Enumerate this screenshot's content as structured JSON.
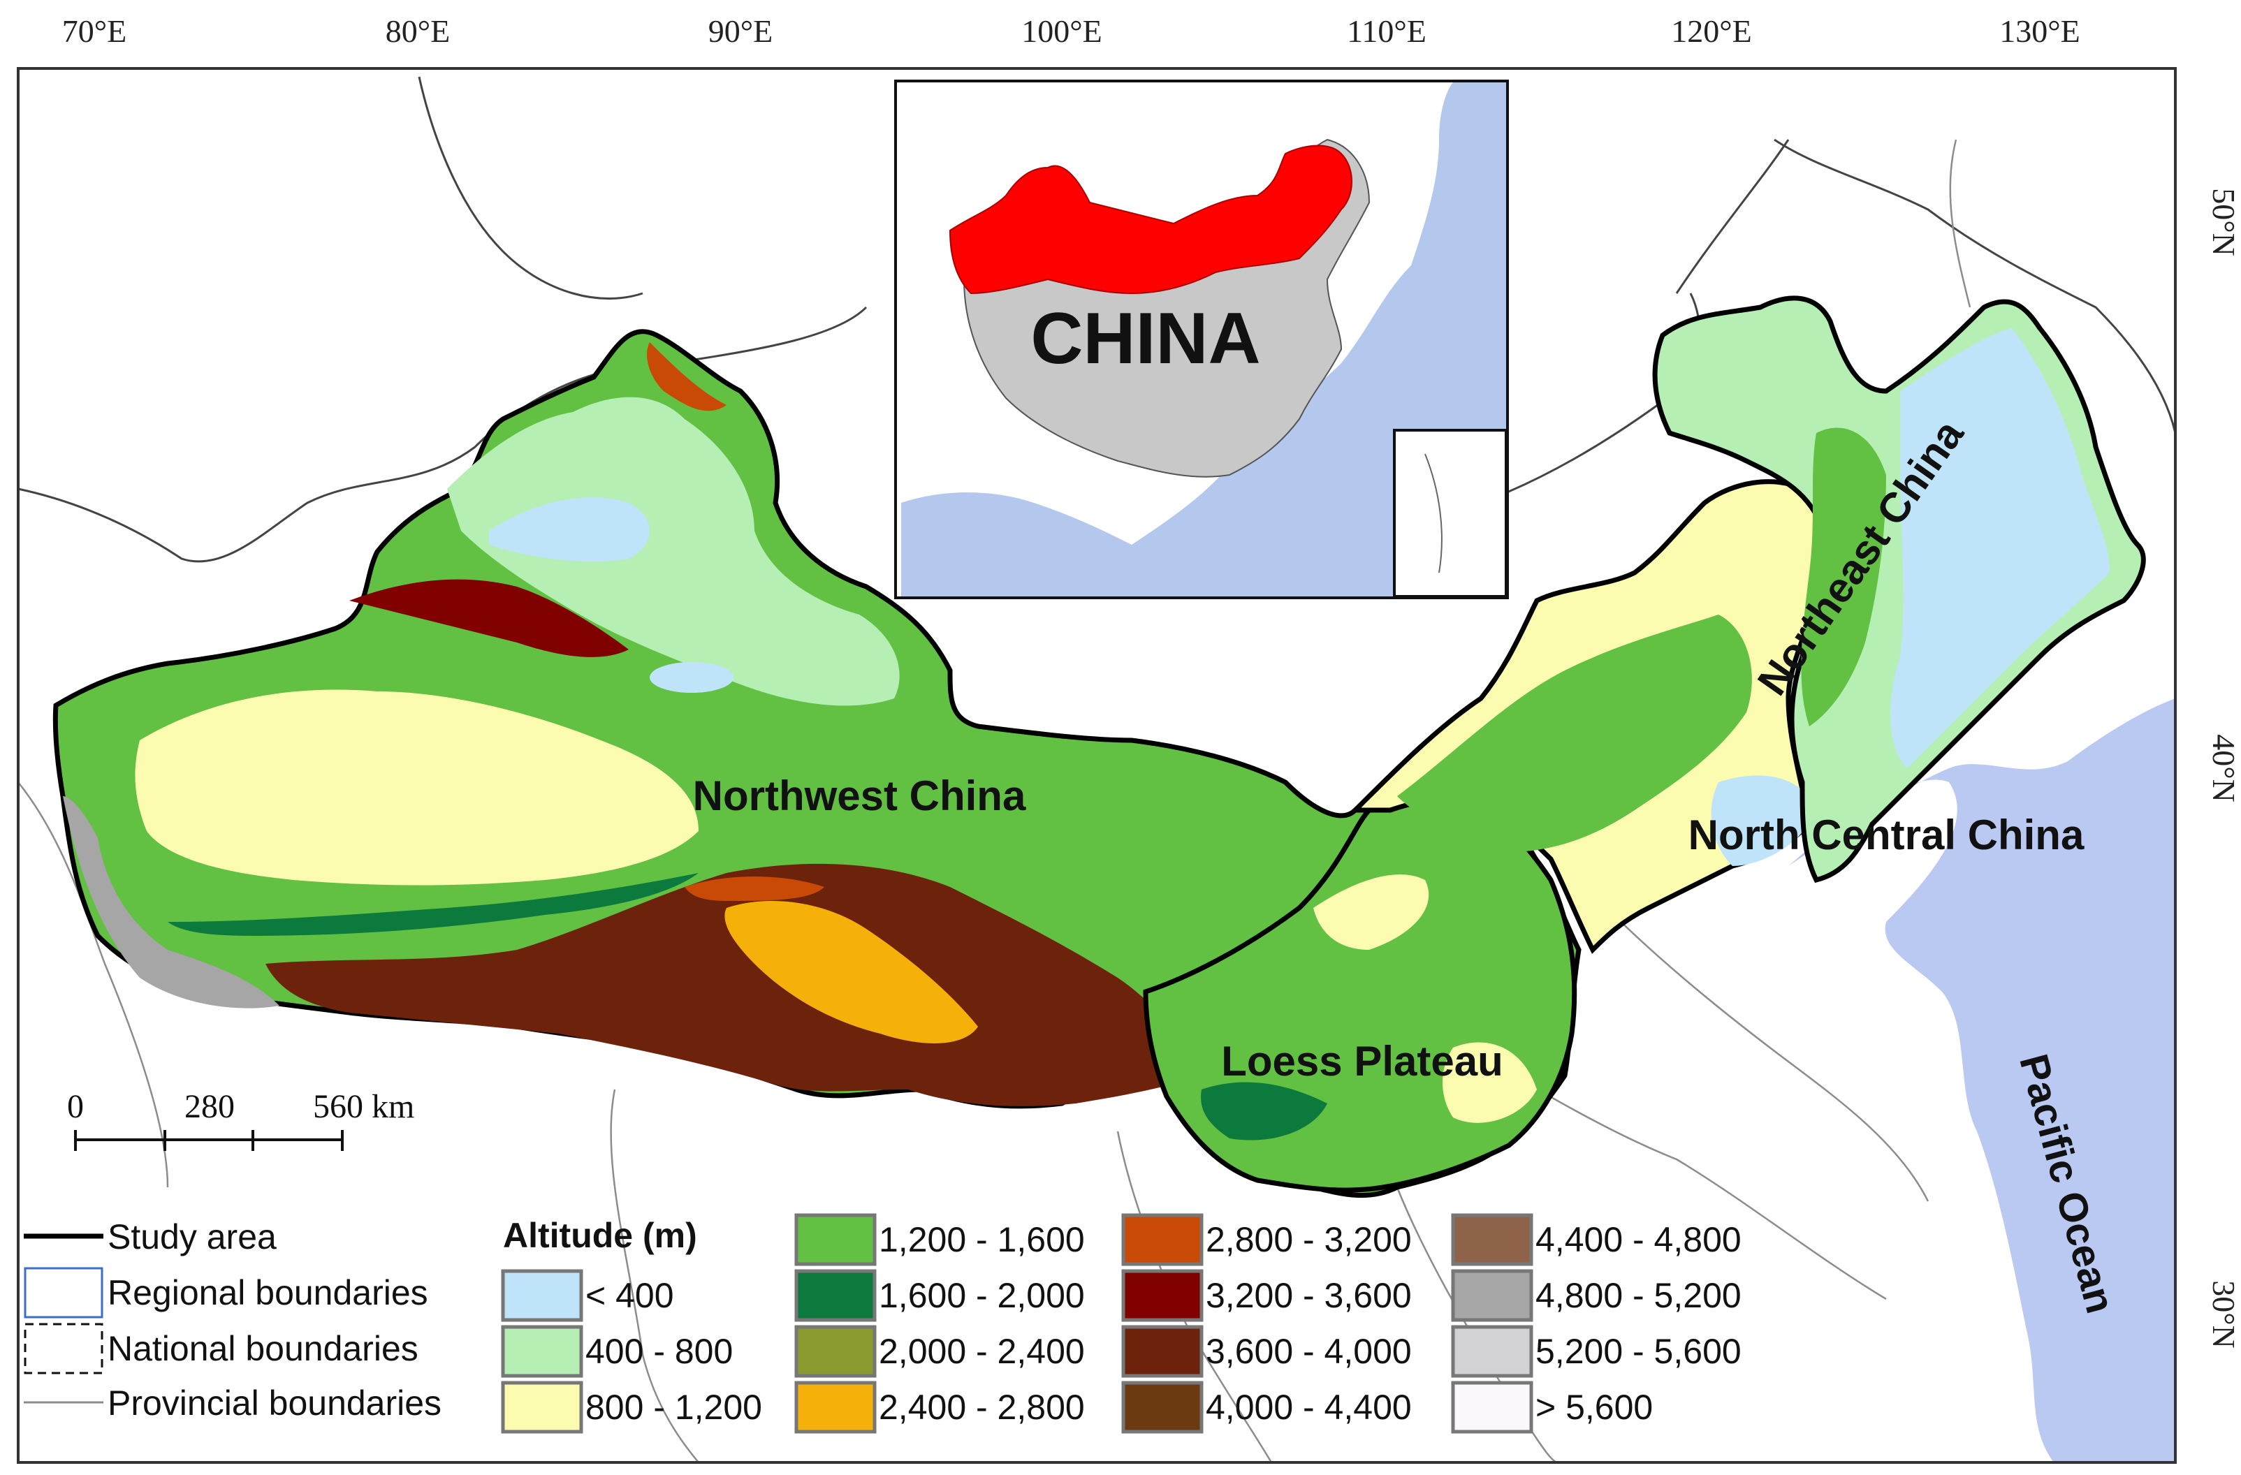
{
  "axes": {
    "lon_labels": [
      "70°E",
      "80°E",
      "90°E",
      "100°E",
      "110°E",
      "120°E",
      "130°E"
    ],
    "lat_labels": [
      "50°N",
      "40°N",
      "30°N"
    ]
  },
  "regions": {
    "northwest": "Northwest China",
    "northeast": "Northeast China",
    "north_central": "North Central China",
    "loess": "Loess Plateau",
    "pacific": "Pacific Ocean"
  },
  "inset": {
    "country_label": "CHINA",
    "highlight_color": "#ff0000",
    "ocean_color": "#b4c8ee",
    "land_color": "#c8c8c8"
  },
  "scale_bar": {
    "ticks": [
      "0",
      "280",
      "560 km"
    ]
  },
  "legend": {
    "boundaries": {
      "study_area": "Study area",
      "regional": "Regional boundaries",
      "national": "National boundaries",
      "provincial": "Provincial boundaries"
    },
    "altitude_title": "Altitude (m)",
    "classes": [
      {
        "label": "< 400",
        "color": "#bfe4fa"
      },
      {
        "label": "400 - 800",
        "color": "#b6efb4"
      },
      {
        "label": "800 - 1,200",
        "color": "#fcfcb0"
      },
      {
        "label": "1,200 - 1,600",
        "color": "#62c043"
      },
      {
        "label": "1,600 - 2,000",
        "color": "#0b7a3c"
      },
      {
        "label": "2,000 - 2,400",
        "color": "#8a9a2e"
      },
      {
        "label": "2,400 - 2,800",
        "color": "#f6b00a"
      },
      {
        "label": "2,800 - 3,200",
        "color": "#c84a06"
      },
      {
        "label": "3,200 - 3,600",
        "color": "#800000"
      },
      {
        "label": "3,600 - 4,000",
        "color": "#6d220c"
      },
      {
        "label": "4,000 - 4,400",
        "color": "#6b3a10"
      },
      {
        "label": "4,400 - 4,800",
        "color": "#8e6349"
      },
      {
        "label": "4,800 - 5,200",
        "color": "#a6a6a6"
      },
      {
        "label": "5,200 - 5,600",
        "color": "#d2d2d4"
      },
      {
        "label": "> 5,600",
        "color": "#fbf8fc"
      }
    ]
  },
  "colors": {
    "ocean": "#b9c9f2",
    "frame": "#333333",
    "provincial_line": "#8c8c8c"
  }
}
